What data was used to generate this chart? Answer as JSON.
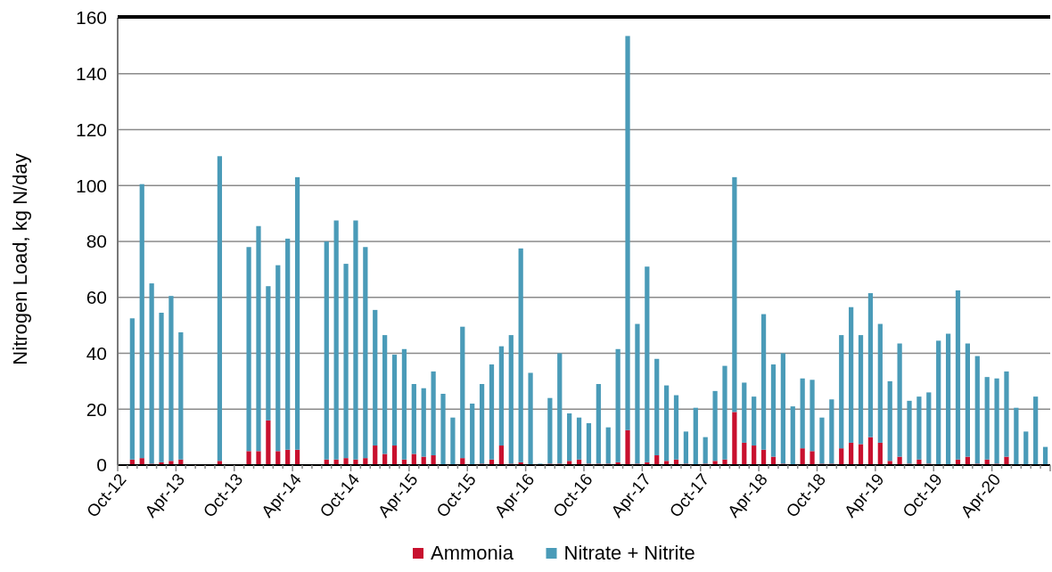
{
  "chart_data": {
    "type": "bar",
    "stacked": true,
    "ylabel": "Nitrogen Load, kg N/day",
    "categories": [
      "Oct-12",
      null,
      null,
      null,
      null,
      null,
      "Apr-13",
      null,
      null,
      null,
      null,
      null,
      "Oct-13",
      null,
      null,
      null,
      null,
      null,
      "Apr-14",
      null,
      null,
      null,
      null,
      null,
      "Oct-14",
      null,
      null,
      null,
      null,
      null,
      "Apr-15",
      null,
      null,
      null,
      null,
      null,
      "Oct-15",
      null,
      null,
      null,
      null,
      null,
      "Apr-16",
      null,
      null,
      null,
      null,
      null,
      "Oct-16",
      null,
      null,
      null,
      null,
      null,
      "Apr-17",
      null,
      null,
      null,
      null,
      null,
      "Oct-17",
      null,
      null,
      null,
      null,
      null,
      "Apr-18",
      null,
      null,
      null,
      null,
      null,
      "Oct-18",
      null,
      null,
      null,
      null,
      null,
      "Apr-19",
      null,
      null,
      null,
      null,
      null,
      "Oct-19",
      null,
      null,
      null,
      null,
      null,
      "Apr-20",
      null,
      null,
      null,
      null,
      null
    ],
    "series": [
      {
        "name": "Ammonia",
        "color": "#c8102e",
        "values": [
          null,
          2,
          2.5,
          0.5,
          1,
          1.5,
          2,
          null,
          null,
          null,
          1.5,
          null,
          null,
          5,
          5,
          16,
          5,
          5.5,
          5.5,
          null,
          null,
          2,
          2,
          2.5,
          2,
          2.5,
          7,
          4,
          7,
          2,
          4,
          3,
          3.5,
          0,
          0,
          2.5,
          0,
          0.5,
          2,
          7,
          0.5,
          1,
          0,
          0,
          0.5,
          0.5,
          1.5,
          2,
          0.5,
          0.5,
          0.5,
          1,
          12.5,
          0.5,
          1,
          3.5,
          1.5,
          2,
          0.5,
          0,
          0.5,
          1.5,
          2,
          19,
          8,
          7,
          5.5,
          3,
          0.5,
          0,
          6,
          5,
          0.5,
          0.5,
          6,
          8,
          7.5,
          10,
          8,
          1.5,
          3,
          0.5,
          2,
          0.5,
          0,
          0,
          2,
          3,
          0.5,
          2,
          0.5,
          3,
          0,
          0,
          0,
          0
        ]
      },
      {
        "name": "Nitrate + Nitrite",
        "color": "#4a9bb8",
        "values": [
          null,
          50.5,
          98,
          64.5,
          53.5,
          59,
          45.5,
          null,
          null,
          null,
          109,
          null,
          null,
          73,
          80.5,
          48,
          66.5,
          75.5,
          97.5,
          null,
          null,
          78,
          85.5,
          69.5,
          85.5,
          75.5,
          48.5,
          42.5,
          32.5,
          39.5,
          25,
          24.5,
          30,
          25.5,
          17,
          47,
          22,
          28.5,
          34,
          35.5,
          46,
          76.5,
          33,
          0.5,
          23.5,
          39.5,
          17,
          15,
          14.5,
          28.5,
          13,
          40.5,
          141,
          50,
          70,
          34.5,
          27,
          23,
          11.5,
          20.5,
          9.5,
          25,
          33.5,
          84,
          21.5,
          17.5,
          48.5,
          33,
          39.5,
          21,
          25,
          25.5,
          16.5,
          23,
          40.5,
          48.5,
          39,
          51.5,
          42.5,
          28.5,
          40.5,
          22.5,
          22.5,
          25.5,
          44.5,
          47,
          60.5,
          40.5,
          38.5,
          29.5,
          30.5,
          30.5,
          20.5,
          12,
          24.5,
          6.5
        ]
      }
    ],
    "ylim": [
      0,
      160
    ],
    "yticks": [
      0,
      20,
      40,
      60,
      80,
      100,
      120,
      140,
      160
    ],
    "grid": "y",
    "legend": "bottom"
  }
}
